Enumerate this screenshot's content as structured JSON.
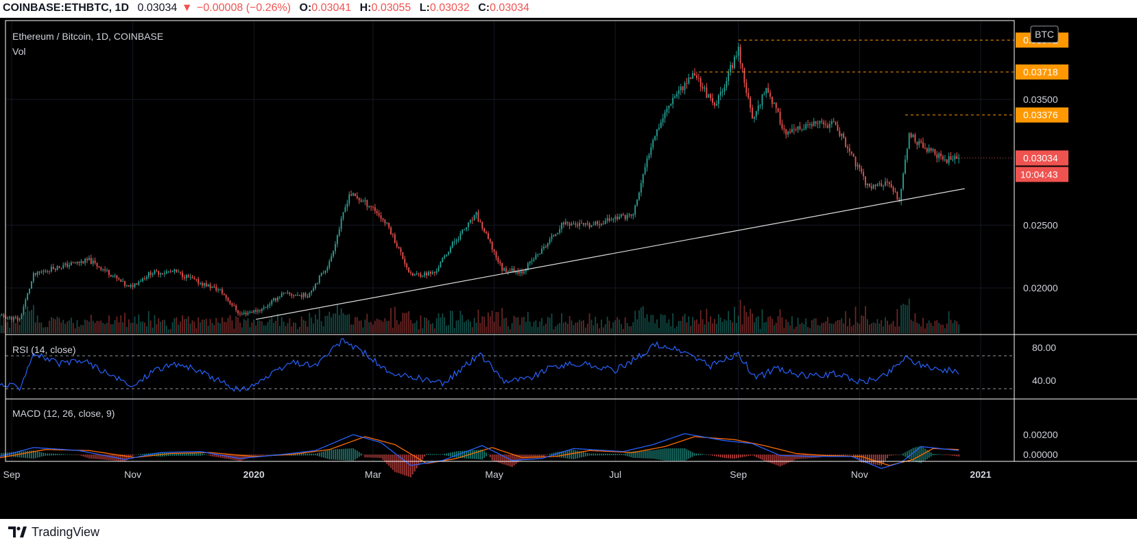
{
  "header": {
    "symbol": "COINBASE:ETHBTC, 1D",
    "last": "0.03034",
    "arrow": "▼",
    "change": "−0.00008 (−0.26%)",
    "o_label": "O:",
    "o_value": "0.03041",
    "h_label": "H:",
    "h_value": "0.03055",
    "l_label": "L:",
    "l_value": "0.03032",
    "c_label": "C:",
    "c_value": "0.03034"
  },
  "legend": {
    "title": "Ethereum / Bitcoin, 1D, COINBASE",
    "vol": "Vol",
    "rsi": "RSI (14, close)",
    "macd": "MACD (12, 26, close, 9)"
  },
  "currency_badge": "BTC",
  "footer": {
    "brand": "TradingView",
    "logo_icon": "tradingview-logo-icon"
  },
  "colors": {
    "up": "#26a69a",
    "down": "#ef5350",
    "line": "#2962ff",
    "signal": "#ff6d00",
    "label_orange": "#ff9800",
    "price_red": "#ef5350"
  },
  "chart_data": {
    "type": "candlestick",
    "title": "Ethereum / Bitcoin, 1D, COINBASE",
    "x_ticks": [
      {
        "date": "2019-09-01",
        "label": "Sep"
      },
      {
        "date": "2019-11-01",
        "label": "Nov"
      },
      {
        "date": "2020-01-01",
        "label": "2020"
      },
      {
        "date": "2020-03-01",
        "label": "Mar"
      },
      {
        "date": "2020-05-01",
        "label": "May"
      },
      {
        "date": "2020-07-01",
        "label": "Jul"
      },
      {
        "date": "2020-09-01",
        "label": "Sep"
      },
      {
        "date": "2020-11-01",
        "label": "Nov"
      },
      {
        "date": "2021-01-01",
        "label": "2021"
      }
    ],
    "price_axis": {
      "ticks": [
        "0.02000",
        "0.02500",
        "0.03500"
      ],
      "range": [
        0.0168,
        0.0401
      ]
    },
    "price_labels": [
      {
        "value": 0.03972,
        "text": "0.03972",
        "color": "#ff9800"
      },
      {
        "value": 0.03718,
        "text": "0.03718",
        "color": "#ff9800"
      },
      {
        "value": 0.03376,
        "text": "0.03376",
        "color": "#ff9800"
      },
      {
        "value": 0.03034,
        "text": "0.03034",
        "color": "#ef5350"
      }
    ],
    "countdown": "10:04:43",
    "horizontal_levels": [
      {
        "value": 0.03972,
        "from": "2020-09-01"
      },
      {
        "value": 0.03718,
        "from": "2020-08-12"
      },
      {
        "value": 0.03376,
        "from": "2020-11-24"
      }
    ],
    "trendline": {
      "start": {
        "date": "2020-01-02",
        "value": 0.0175
      },
      "end": {
        "date": "2020-12-24",
        "value": 0.0279
      }
    },
    "close_series": [
      [
        "2019-08-24",
        0.0178
      ],
      [
        "2019-09-05",
        0.0175
      ],
      [
        "2019-09-12",
        0.021
      ],
      [
        "2019-09-20",
        0.0215
      ],
      [
        "2019-10-01",
        0.0219
      ],
      [
        "2019-10-10",
        0.0222
      ],
      [
        "2019-10-20",
        0.0212
      ],
      [
        "2019-10-30",
        0.02
      ],
      [
        "2019-11-10",
        0.0212
      ],
      [
        "2019-11-22",
        0.0213
      ],
      [
        "2019-12-05",
        0.0204
      ],
      [
        "2019-12-15",
        0.0198
      ],
      [
        "2019-12-25",
        0.0179
      ],
      [
        "2020-01-05",
        0.0183
      ],
      [
        "2020-01-15",
        0.0195
      ],
      [
        "2020-01-28",
        0.0194
      ],
      [
        "2020-02-08",
        0.022
      ],
      [
        "2020-02-18",
        0.0275
      ],
      [
        "2020-03-01",
        0.0264
      ],
      [
        "2020-03-09",
        0.0248
      ],
      [
        "2020-03-20",
        0.021
      ],
      [
        "2020-04-01",
        0.0212
      ],
      [
        "2020-04-10",
        0.0235
      ],
      [
        "2020-04-22",
        0.0258
      ],
      [
        "2020-05-05",
        0.0215
      ],
      [
        "2020-05-15",
        0.0213
      ],
      [
        "2020-05-25",
        0.023
      ],
      [
        "2020-06-05",
        0.0252
      ],
      [
        "2020-06-18",
        0.0249
      ],
      [
        "2020-07-01",
        0.0256
      ],
      [
        "2020-07-10",
        0.0258
      ],
      [
        "2020-07-20",
        0.032
      ],
      [
        "2020-07-30",
        0.0352
      ],
      [
        "2020-08-10",
        0.0371
      ],
      [
        "2020-08-20",
        0.0343
      ],
      [
        "2020-09-01",
        0.039
      ],
      [
        "2020-09-08",
        0.0333
      ],
      [
        "2020-09-15",
        0.036
      ],
      [
        "2020-09-25",
        0.0322
      ],
      [
        "2020-10-08",
        0.033
      ],
      [
        "2020-10-20",
        0.033
      ],
      [
        "2020-10-28",
        0.0305
      ],
      [
        "2020-11-05",
        0.0281
      ],
      [
        "2020-11-15",
        0.0283
      ],
      [
        "2020-11-21",
        0.027
      ],
      [
        "2020-11-26",
        0.0322
      ],
      [
        "2020-12-05",
        0.031
      ],
      [
        "2020-12-15",
        0.0302
      ],
      [
        "2020-12-21",
        0.0303
      ]
    ],
    "rsi": {
      "name": "RSI (14, close)",
      "ticks": [
        "80.00",
        "40.00"
      ],
      "range": [
        25,
        95
      ],
      "bands": [
        70,
        30
      ],
      "series": [
        [
          "2019-08-24",
          36
        ],
        [
          "2019-09-05",
          32
        ],
        [
          "2019-09-12",
          74
        ],
        [
          "2019-09-25",
          60
        ],
        [
          "2019-10-08",
          64
        ],
        [
          "2019-10-20",
          47
        ],
        [
          "2019-11-01",
          32
        ],
        [
          "2019-11-12",
          54
        ],
        [
          "2019-11-25",
          60
        ],
        [
          "2019-12-10",
          45
        ],
        [
          "2019-12-25",
          27
        ],
        [
          "2020-01-08",
          44
        ],
        [
          "2020-01-20",
          62
        ],
        [
          "2020-02-01",
          58
        ],
        [
          "2020-02-15",
          89
        ],
        [
          "2020-02-28",
          70
        ],
        [
          "2020-03-10",
          46
        ],
        [
          "2020-03-22",
          44
        ],
        [
          "2020-04-05",
          36
        ],
        [
          "2020-04-15",
          55
        ],
        [
          "2020-04-24",
          72
        ],
        [
          "2020-05-06",
          40
        ],
        [
          "2020-05-18",
          42
        ],
        [
          "2020-06-01",
          58
        ],
        [
          "2020-06-15",
          60
        ],
        [
          "2020-07-01",
          52
        ],
        [
          "2020-07-12",
          68
        ],
        [
          "2020-07-22",
          84
        ],
        [
          "2020-08-05",
          74
        ],
        [
          "2020-08-18",
          58
        ],
        [
          "2020-09-01",
          72
        ],
        [
          "2020-09-10",
          42
        ],
        [
          "2020-09-20",
          55
        ],
        [
          "2020-10-05",
          45
        ],
        [
          "2020-10-20",
          48
        ],
        [
          "2020-11-02",
          38
        ],
        [
          "2020-11-14",
          46
        ],
        [
          "2020-11-24",
          68
        ],
        [
          "2020-12-05",
          56
        ],
        [
          "2020-12-21",
          51
        ]
      ]
    },
    "macd": {
      "name": "MACD (12, 26, close, 9)",
      "ticks": [
        "0.00200",
        "0.00000"
      ],
      "range": [
        -0.0018,
        0.0026
      ],
      "macd_series": [
        [
          "2019-08-24",
          -0.0003
        ],
        [
          "2019-09-12",
          0.0007
        ],
        [
          "2019-10-05",
          0.0004
        ],
        [
          "2019-10-28",
          -0.0005
        ],
        [
          "2019-11-15",
          0.0002
        ],
        [
          "2019-12-05",
          0.0003
        ],
        [
          "2019-12-25",
          -0.0004
        ],
        [
          "2020-01-15",
          0.0
        ],
        [
          "2020-02-01",
          0.0004
        ],
        [
          "2020-02-20",
          0.002
        ],
        [
          "2020-03-05",
          0.0012
        ],
        [
          "2020-03-20",
          -0.0011
        ],
        [
          "2020-04-05",
          -0.0006
        ],
        [
          "2020-04-25",
          0.0009
        ],
        [
          "2020-05-10",
          -0.0006
        ],
        [
          "2020-05-25",
          -0.0004
        ],
        [
          "2020-06-10",
          0.0006
        ],
        [
          "2020-07-05",
          0.0003
        ],
        [
          "2020-07-20",
          0.001
        ],
        [
          "2020-08-05",
          0.0021
        ],
        [
          "2020-08-25",
          0.0014
        ],
        [
          "2020-09-08",
          0.0011
        ],
        [
          "2020-09-22",
          -0.0001
        ],
        [
          "2020-10-10",
          -0.0002
        ],
        [
          "2020-10-28",
          -0.0002
        ],
        [
          "2020-11-12",
          -0.0014
        ],
        [
          "2020-11-22",
          -0.0008
        ],
        [
          "2020-12-02",
          0.0008
        ],
        [
          "2020-12-21",
          0.0004
        ]
      ],
      "signal_series": [
        [
          "2019-08-24",
          -0.0004
        ],
        [
          "2019-09-18",
          0.0005
        ],
        [
          "2019-10-10",
          0.0004
        ],
        [
          "2019-11-02",
          -0.0003
        ],
        [
          "2019-11-20",
          0.0001
        ],
        [
          "2019-12-10",
          0.0002
        ],
        [
          "2020-01-01",
          -0.0002
        ],
        [
          "2020-01-20",
          0.0
        ],
        [
          "2020-02-08",
          0.0005
        ],
        [
          "2020-02-26",
          0.0018
        ],
        [
          "2020-03-12",
          0.001
        ],
        [
          "2020-03-28",
          -0.0009
        ],
        [
          "2020-04-12",
          -0.0004
        ],
        [
          "2020-04-30",
          0.0007
        ],
        [
          "2020-05-15",
          -0.0003
        ],
        [
          "2020-06-01",
          -0.0002
        ],
        [
          "2020-06-18",
          0.0004
        ],
        [
          "2020-07-10",
          0.0002
        ],
        [
          "2020-07-26",
          0.0008
        ],
        [
          "2020-08-10",
          0.0018
        ],
        [
          "2020-08-30",
          0.0015
        ],
        [
          "2020-09-14",
          0.0009
        ],
        [
          "2020-09-30",
          0.0001
        ],
        [
          "2020-10-15",
          -0.0001
        ],
        [
          "2020-11-02",
          -0.0002
        ],
        [
          "2020-11-16",
          -0.0011
        ],
        [
          "2020-11-28",
          -0.0005
        ],
        [
          "2020-12-08",
          0.0006
        ],
        [
          "2020-12-21",
          0.0005
        ]
      ]
    }
  }
}
